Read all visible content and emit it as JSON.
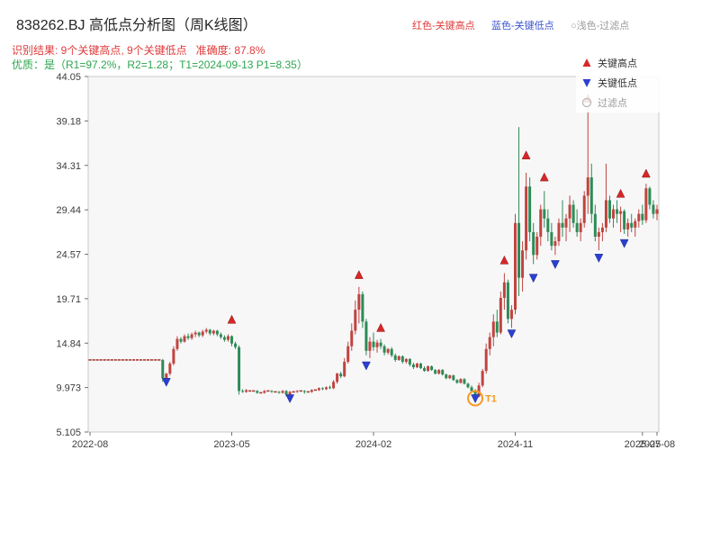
{
  "header": {
    "title": "838262.BJ 高低点分析图（周K线图）",
    "legend_high": "红色-关键高点",
    "legend_low": "蓝色-关键低点",
    "legend_filter": "○浅色-过滤点",
    "result_line": "识别结果: 9个关键高点, 9个关键低点   准确度: 87.8%",
    "quality_line": "优质：是（R1=97.2%，R2=1.28；T1=2024-09-13 P1=8.35）"
  },
  "plot_legend": {
    "items": [
      {
        "marker": "up",
        "label": "关键高点",
        "muted": false
      },
      {
        "marker": "down",
        "label": "关键低点",
        "muted": false
      },
      {
        "marker": "circle",
        "label": "过滤点",
        "muted": true
      }
    ]
  },
  "chart_data": {
    "type": "candlestick",
    "title": "838262.BJ 高低点分析图（周K线图）",
    "xlabel": "",
    "ylabel": "",
    "ylim": [
      5.105,
      44.05
    ],
    "y_ticks": [
      "44.05",
      "39.18",
      "34.31",
      "29.44",
      "24.57",
      "19.71",
      "14.84",
      "9.973",
      "5.105"
    ],
    "x_ticks": [
      {
        "index": 0,
        "label": "2022-08"
      },
      {
        "index": 39,
        "label": "2023-05"
      },
      {
        "index": 78,
        "label": "2024-02"
      },
      {
        "index": 117,
        "label": "2024-11"
      },
      {
        "index": 152,
        "label": "2025-07"
      },
      {
        "index": 156,
        "label": "2025-08"
      }
    ],
    "colors": {
      "up": "#c0443f",
      "down": "#2e8b57",
      "flat": "#a33a32",
      "high_marker": "#d62728",
      "low_marker": "#2d3fd0",
      "filter_marker": "#b9b9b9",
      "t1": "#f59a23",
      "plot_bg": "#f7f7f8",
      "spine": "#c9c9c9"
    },
    "candles": [
      [
        13,
        13,
        13,
        13
      ],
      [
        13,
        13,
        13,
        13
      ],
      [
        13,
        13,
        13,
        13
      ],
      [
        13,
        13,
        13,
        13
      ],
      [
        13,
        13,
        13,
        13
      ],
      [
        13,
        13,
        13,
        13
      ],
      [
        13,
        13,
        13,
        13
      ],
      [
        13,
        13,
        13,
        13
      ],
      [
        13,
        13,
        13,
        13
      ],
      [
        13,
        13,
        13,
        13
      ],
      [
        13,
        13,
        13,
        13
      ],
      [
        13,
        13,
        13,
        13
      ],
      [
        13,
        13,
        13,
        13
      ],
      [
        13,
        13,
        13,
        13
      ],
      [
        13,
        13,
        13,
        13
      ],
      [
        13,
        13,
        13,
        13
      ],
      [
        13,
        13,
        13,
        13
      ],
      [
        13,
        13,
        13,
        13
      ],
      [
        13,
        13,
        13,
        13
      ],
      [
        13,
        13,
        13,
        13
      ],
      [
        13,
        13.1,
        10.6,
        11
      ],
      [
        11,
        11.6,
        10.9,
        11.5
      ],
      [
        11.5,
        12.8,
        11.3,
        12.6
      ],
      [
        12.6,
        14.5,
        12.4,
        14.2
      ],
      [
        14.2,
        15.6,
        14,
        15.3
      ],
      [
        15.3,
        15.5,
        14.8,
        15
      ],
      [
        15,
        15.8,
        14.9,
        15.6
      ],
      [
        15.6,
        15.9,
        15.2,
        15.4
      ],
      [
        15.4,
        16,
        15.2,
        15.8
      ],
      [
        15.8,
        16.2,
        15.5,
        16
      ],
      [
        16,
        16.1,
        15.5,
        15.7
      ],
      [
        15.7,
        16.3,
        15.5,
        16.1
      ],
      [
        16.1,
        16.5,
        15.9,
        16.3
      ],
      [
        16.3,
        16.4,
        15.7,
        15.9
      ],
      [
        15.9,
        16.3,
        15.7,
        16.2
      ],
      [
        16.2,
        16.3,
        15.6,
        15.8
      ],
      [
        15.8,
        16,
        15.3,
        15.5
      ],
      [
        15.5,
        15.7,
        15,
        15.2
      ],
      [
        15.2,
        15.8,
        15,
        15.6
      ],
      [
        15.6,
        15.7,
        14.5,
        14.8
      ],
      [
        14.8,
        15,
        14.2,
        14.4
      ],
      [
        14.4,
        14.6,
        9.2,
        9.6
      ],
      [
        9.6,
        9.8,
        9.4,
        9.5
      ],
      [
        9.5,
        9.8,
        9.4,
        9.7
      ],
      [
        9.6,
        9.6,
        9.6,
        9.6
      ],
      [
        9.6,
        9.6,
        9.6,
        9.6
      ],
      [
        9.6,
        9.7,
        9.3,
        9.4
      ],
      [
        9.4,
        9.4,
        9.4,
        9.4
      ],
      [
        9.4,
        9.7,
        9.3,
        9.6
      ],
      [
        9.6,
        9.6,
        9.6,
        9.6
      ],
      [
        9.6,
        9.7,
        9.4,
        9.5
      ],
      [
        9.5,
        9.5,
        9.5,
        9.5
      ],
      [
        9.5,
        9.6,
        9.3,
        9.4
      ],
      [
        9.4,
        9.7,
        9.3,
        9.6
      ],
      [
        9.6,
        9.7,
        9,
        9.2
      ],
      [
        9.2,
        9.6,
        9.1,
        9.5
      ],
      [
        9.5,
        9.5,
        9.5,
        9.5
      ],
      [
        9.5,
        9.7,
        9.4,
        9.6
      ],
      [
        9.6,
        9.6,
        9.6,
        9.6
      ],
      [
        9.6,
        9.7,
        9.3,
        9.5
      ],
      [
        9.5,
        9.5,
        9.5,
        9.5
      ],
      [
        9.5,
        9.8,
        9.4,
        9.7
      ],
      [
        9.7,
        9.7,
        9.7,
        9.7
      ],
      [
        9.7,
        10,
        9.6,
        9.9
      ],
      [
        9.9,
        10,
        9.7,
        9.8
      ],
      [
        9.8,
        10.1,
        9.7,
        10
      ],
      [
        10,
        10.2,
        9.8,
        9.9
      ],
      [
        9.9,
        10.8,
        9.8,
        10.6
      ],
      [
        10.6,
        11.6,
        10.4,
        11.5
      ],
      [
        11.5,
        11.7,
        11,
        11.2
      ],
      [
        11.2,
        13.2,
        11.1,
        12.8
      ],
      [
        12.8,
        15,
        12.6,
        14.5
      ],
      [
        14.5,
        17,
        14,
        16.2
      ],
      [
        16.2,
        19.5,
        15.8,
        18.5
      ],
      [
        18.5,
        21,
        17,
        20.2
      ],
      [
        20.2,
        20.5,
        16.5,
        17.2
      ],
      [
        17.2,
        17.5,
        13.5,
        14
      ],
      [
        14,
        15.5,
        13.2,
        15
      ],
      [
        15,
        16,
        14,
        14.4
      ],
      [
        14.4,
        15.2,
        13.8,
        14.9
      ],
      [
        14.9,
        15.3,
        14.2,
        14.5
      ],
      [
        14.5,
        14.7,
        13.5,
        13.8
      ],
      [
        13.8,
        14.3,
        13.6,
        14.2
      ],
      [
        14.2,
        14.4,
        13.3,
        13.5
      ],
      [
        13.5,
        13.7,
        12.8,
        13
      ],
      [
        13,
        13.5,
        12.9,
        13.4
      ],
      [
        13.4,
        13.5,
        12.6,
        12.8
      ],
      [
        12.8,
        13.2,
        12.6,
        13.1
      ],
      [
        13.1,
        13.2,
        12.3,
        12.5
      ],
      [
        12.5,
        12.7,
        12,
        12.2
      ],
      [
        12.2,
        12.7,
        12.1,
        12.6
      ],
      [
        12.6,
        12.7,
        12,
        12.1
      ],
      [
        12.1,
        12.3,
        11.7,
        11.8
      ],
      [
        11.8,
        12.4,
        11.7,
        12.3
      ],
      [
        12.3,
        12.4,
        11.8,
        11.9
      ],
      [
        11.9,
        12,
        11.4,
        11.5
      ],
      [
        11.5,
        12,
        11.4,
        11.9
      ],
      [
        11.9,
        12,
        11.3,
        11.4
      ],
      [
        11.4,
        11.5,
        10.9,
        11
      ],
      [
        11,
        11.4,
        10.9,
        11.3
      ],
      [
        11.3,
        11.4,
        10.7,
        10.8
      ],
      [
        10.8,
        10.9,
        10.4,
        10.5
      ],
      [
        10.5,
        11,
        10.4,
        10.9
      ],
      [
        10.9,
        11,
        10.3,
        10.4
      ],
      [
        10.4,
        10.5,
        9.9,
        10
      ],
      [
        10,
        10.2,
        9.4,
        9.6
      ],
      [
        9.6,
        9.8,
        8.5,
        9
      ],
      [
        9,
        10.5,
        8.9,
        10.2
      ],
      [
        10.2,
        12,
        10,
        11.8
      ],
      [
        11.8,
        14.8,
        11.5,
        14.2
      ],
      [
        14.2,
        16,
        13.5,
        15.5
      ],
      [
        15.5,
        18,
        14.5,
        17.2
      ],
      [
        17.2,
        18.5,
        15.5,
        16
      ],
      [
        16,
        20.5,
        15.8,
        19.8
      ],
      [
        19.8,
        22.5,
        18.5,
        21.5
      ],
      [
        21.5,
        21.8,
        17,
        17.5
      ],
      [
        17.5,
        19,
        16.5,
        18.5
      ],
      [
        18.5,
        29,
        18,
        28
      ],
      [
        28,
        38.5,
        20,
        22
      ],
      [
        22,
        26,
        20.5,
        25
      ],
      [
        25,
        33.5,
        24,
        32
      ],
      [
        32,
        33,
        26,
        27
      ],
      [
        27,
        28,
        23.5,
        24.5
      ],
      [
        24.5,
        27,
        24,
        26.5
      ],
      [
        26.5,
        30,
        25.5,
        29.5
      ],
      [
        29.5,
        31.5,
        27.5,
        28.5
      ],
      [
        28.5,
        29.5,
        26,
        27
      ],
      [
        27,
        28,
        25,
        25.5
      ],
      [
        25.5,
        26.5,
        24.5,
        26
      ],
      [
        26,
        28.5,
        25.5,
        28
      ],
      [
        28,
        30.5,
        26.5,
        27.5
      ],
      [
        27.5,
        29,
        26,
        28.5
      ],
      [
        28.5,
        31,
        27,
        30
      ],
      [
        30,
        30.5,
        27.5,
        28
      ],
      [
        28,
        29.5,
        26.5,
        27
      ],
      [
        27,
        28.5,
        26,
        28
      ],
      [
        28,
        31.5,
        27.5,
        31
      ],
      [
        31,
        40.5,
        29,
        33
      ],
      [
        33,
        34.5,
        28,
        29
      ],
      [
        29,
        30,
        26,
        26.5
      ],
      [
        26.5,
        27.5,
        25,
        27
      ],
      [
        27,
        28,
        26,
        27.5
      ],
      [
        27.5,
        34.5,
        27,
        30.5
      ],
      [
        30.5,
        31,
        28,
        28.5
      ],
      [
        28.5,
        30,
        27.5,
        29.5
      ],
      [
        29.5,
        30.5,
        28,
        29
      ],
      [
        29,
        29.8,
        27,
        29.3
      ],
      [
        29.3,
        29.5,
        26.8,
        27.3
      ],
      [
        27.3,
        28.5,
        26.5,
        28
      ],
      [
        28,
        29,
        27,
        27.5
      ],
      [
        27.5,
        28.5,
        26.5,
        28.2
      ],
      [
        28.2,
        29.5,
        27.5,
        29
      ],
      [
        29,
        30,
        27.8,
        28.3
      ],
      [
        28.3,
        32.3,
        28,
        31.8
      ],
      [
        31.8,
        32,
        29.5,
        30
      ],
      [
        30,
        30.5,
        28.5,
        29
      ],
      [
        29,
        30,
        28.3,
        29.5
      ]
    ],
    "key_highs": [
      {
        "index": 39,
        "value": 17.4
      },
      {
        "index": 74,
        "value": 22.3
      },
      {
        "index": 80,
        "value": 16.5
      },
      {
        "index": 114,
        "value": 23.9
      },
      {
        "index": 120,
        "value": 35.4
      },
      {
        "index": 125,
        "value": 33.0
      },
      {
        "index": 137,
        "value": 41.6
      },
      {
        "index": 146,
        "value": 31.2
      },
      {
        "index": 153,
        "value": 33.4
      }
    ],
    "key_lows": [
      {
        "index": 21,
        "value": 10.6
      },
      {
        "index": 55,
        "value": 8.8
      },
      {
        "index": 76,
        "value": 12.4
      },
      {
        "index": 106,
        "value": 8.8
      },
      {
        "index": 116,
        "value": 15.9
      },
      {
        "index": 122,
        "value": 22.0
      },
      {
        "index": 128,
        "value": 23.5
      },
      {
        "index": 140,
        "value": 24.2
      },
      {
        "index": 147,
        "value": 25.8
      }
    ],
    "t1": {
      "index": 106,
      "value": 8.8,
      "label": "T1"
    }
  }
}
